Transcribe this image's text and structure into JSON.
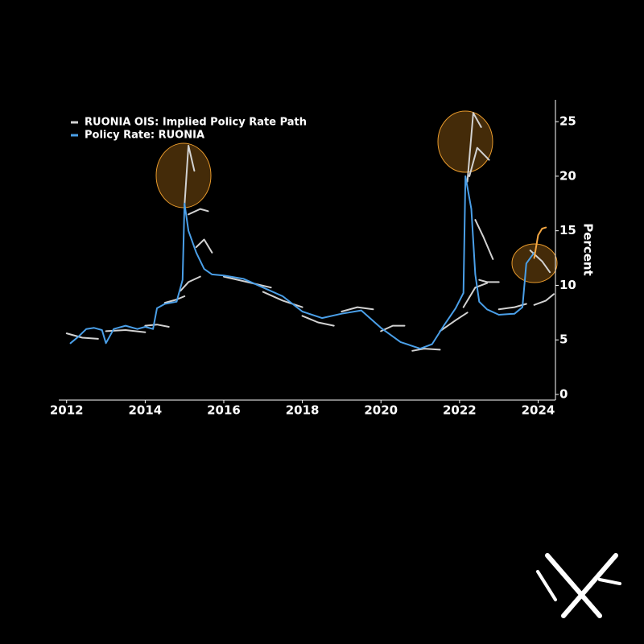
{
  "chart_data": {
    "type": "line",
    "ylabel": "Percent",
    "xlim": [
      2011.8,
      2024.4
    ],
    "xticks": [
      2012,
      2014,
      2016,
      2018,
      2020,
      2022,
      2024
    ],
    "ylim": [
      0,
      27
    ],
    "yticks": [
      0,
      5,
      10,
      15,
      20,
      25
    ],
    "series": [
      {
        "name": "RUONIA OIS: Implied Policy Rate Path",
        "color": "#d2d2d2",
        "x": [
          2012.0,
          2012.4,
          2012.8,
          null,
          2013.0,
          2013.5,
          2014.0,
          null,
          2014.0,
          2014.3,
          2014.6,
          null,
          2014.5,
          2014.8,
          2015.0,
          null,
          2015.0,
          2015.1,
          2015.25,
          null,
          2015.1,
          2015.4,
          2015.6,
          null,
          2015.3,
          2015.5,
          2015.7,
          null,
          2014.9,
          2015.1,
          2015.4,
          null,
          2016.0,
          2016.6,
          2017.2,
          null,
          2017.0,
          2017.5,
          2018.0,
          null,
          2018.0,
          2018.4,
          2018.8,
          null,
          2019.0,
          2019.4,
          2019.8,
          null,
          2020.0,
          2020.3,
          2020.6,
          null,
          2020.8,
          2021.1,
          2021.5,
          null,
          2021.5,
          2021.9,
          2022.2,
          null,
          2022.1,
          2022.4,
          2022.7,
          null,
          2022.2,
          2022.35,
          2022.55,
          null,
          2022.25,
          2022.45,
          2022.75,
          null,
          2022.4,
          2022.6,
          2022.85,
          null,
          2022.5,
          2022.7,
          2023.0,
          null,
          2023.0,
          2023.4,
          2023.7,
          null,
          2023.8,
          2024.1,
          2024.3,
          null,
          2023.9,
          2024.2,
          2024.4
        ],
        "values": [
          5.6,
          5.2,
          5.1,
          null,
          5.8,
          5.9,
          5.7,
          null,
          6.3,
          6.4,
          6.2,
          null,
          8.4,
          8.7,
          9.0,
          null,
          17.3,
          22.8,
          20.5,
          null,
          16.5,
          17.0,
          16.8,
          null,
          13.5,
          14.2,
          13.0,
          null,
          9.5,
          10.3,
          10.8,
          null,
          10.8,
          10.3,
          9.8,
          null,
          9.4,
          8.6,
          8.0,
          null,
          7.2,
          6.6,
          6.3,
          null,
          7.6,
          8.0,
          7.8,
          null,
          5.8,
          6.3,
          6.3,
          null,
          4.0,
          4.2,
          4.1,
          null,
          5.8,
          6.8,
          7.5,
          null,
          8.0,
          9.8,
          10.2,
          null,
          19.5,
          25.8,
          24.5,
          null,
          20.0,
          22.6,
          21.5,
          null,
          16.0,
          14.5,
          12.4,
          null,
          10.5,
          10.3,
          10.3,
          null,
          7.8,
          8.0,
          8.3,
          null,
          13.2,
          12.2,
          11.2,
          null,
          8.2,
          8.6,
          9.2
        ]
      },
      {
        "name": "Policy Rate: RUONIA",
        "color": "#4a9fe8",
        "x": [
          2012.1,
          2012.3,
          2012.5,
          2012.7,
          2012.9,
          2013.0,
          2013.2,
          2013.5,
          2013.8,
          2014.0,
          2014.2,
          2014.3,
          2014.5,
          2014.8,
          2014.95,
          2015.0,
          2015.1,
          2015.3,
          2015.5,
          2015.7,
          2016.0,
          2016.5,
          2017.0,
          2017.5,
          2018.0,
          2018.5,
          2019.0,
          2019.5,
          2020.0,
          2020.5,
          2021.0,
          2021.3,
          2021.6,
          2021.9,
          2022.1,
          2022.15,
          2022.3,
          2022.4,
          2022.5,
          2022.7,
          2023.0,
          2023.4,
          2023.6,
          2023.7,
          2023.9
        ],
        "values": [
          4.7,
          5.3,
          6.0,
          6.1,
          5.9,
          4.7,
          6.0,
          6.3,
          6.0,
          6.2,
          6.0,
          7.9,
          8.3,
          8.5,
          10.5,
          17.5,
          15.0,
          13.0,
          11.5,
          11.0,
          10.9,
          10.6,
          9.8,
          9.0,
          7.6,
          7.0,
          7.4,
          7.7,
          6.1,
          4.8,
          4.2,
          4.6,
          6.3,
          7.9,
          9.3,
          20.0,
          17.0,
          11.0,
          8.5,
          7.8,
          7.3,
          7.4,
          8.0,
          12.0,
          13.0
        ]
      },
      {
        "color": "#f5a742",
        "x": [
          2023.9,
          2024.0,
          2024.1,
          2024.2
        ],
        "values": [
          12.5,
          14.6,
          15.2,
          15.3
        ]
      }
    ]
  }
}
